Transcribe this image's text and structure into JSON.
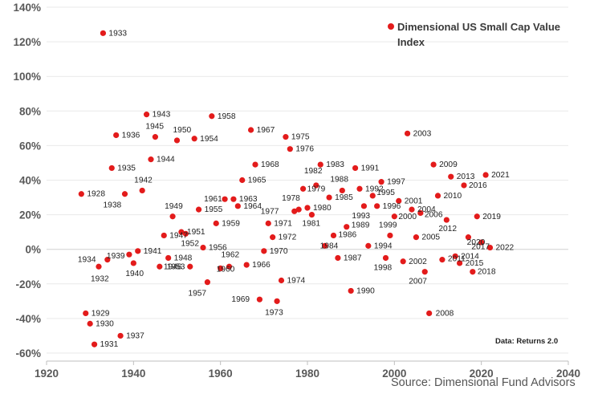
{
  "chart_data": {
    "type": "scatter",
    "title": "",
    "legend": {
      "label_line1": "Dimensional US Small Cap Value",
      "label_line2": "Index",
      "position": "top-right"
    },
    "xlabel": "",
    "ylabel": "",
    "xlim": [
      1920,
      2040
    ],
    "ylim": [
      -60,
      140
    ],
    "x_ticks": [
      "1920",
      "1940",
      "1960",
      "1980",
      "2000",
      "2020",
      "2040"
    ],
    "y_ticks": [
      "140%",
      "120%",
      "100%",
      "80%",
      "60%",
      "40%",
      "20%",
      "0%",
      "-20%",
      "-40%",
      "-60%"
    ],
    "grid": "horizontal",
    "marker_color": "#E31B1B",
    "series": [
      {
        "name": "Dimensional US Small Cap Value Index",
        "unit": "% annual return",
        "points": [
          {
            "year": "1928",
            "x": 1928,
            "y": 32
          },
          {
            "year": "1929",
            "x": 1929,
            "y": -37
          },
          {
            "year": "1930",
            "x": 1930,
            "y": -43
          },
          {
            "year": "1931",
            "x": 1931,
            "y": -55
          },
          {
            "year": "1932",
            "x": 1932,
            "y": -10
          },
          {
            "year": "1933",
            "x": 1933,
            "y": 125
          },
          {
            "year": "1934",
            "x": 1934,
            "y": -6
          },
          {
            "year": "1935",
            "x": 1935,
            "y": 47
          },
          {
            "year": "1936",
            "x": 1936,
            "y": 66
          },
          {
            "year": "1937",
            "x": 1937,
            "y": -50
          },
          {
            "year": "1938",
            "x": 1938,
            "y": 32
          },
          {
            "year": "1939",
            "x": 1939,
            "y": -3
          },
          {
            "year": "1940",
            "x": 1940,
            "y": -8
          },
          {
            "year": "1941",
            "x": 1941,
            "y": -1
          },
          {
            "year": "1942",
            "x": 1942,
            "y": 34
          },
          {
            "year": "1943",
            "x": 1943,
            "y": 78
          },
          {
            "year": "1944",
            "x": 1944,
            "y": 52
          },
          {
            "year": "1945",
            "x": 1945,
            "y": 65
          },
          {
            "year": "1946",
            "x": 1946,
            "y": -10
          },
          {
            "year": "1947",
            "x": 1947,
            "y": 8
          },
          {
            "year": "1948",
            "x": 1948,
            "y": -5
          },
          {
            "year": "1949",
            "x": 1949,
            "y": 19
          },
          {
            "year": "1950",
            "x": 1950,
            "y": 63
          },
          {
            "year": "1951",
            "x": 1951,
            "y": 10
          },
          {
            "year": "1952",
            "x": 1952,
            "y": 9
          },
          {
            "year": "1953",
            "x": 1953,
            "y": -10
          },
          {
            "year": "1954",
            "x": 1954,
            "y": 64
          },
          {
            "year": "1955",
            "x": 1955,
            "y": 23
          },
          {
            "year": "1956",
            "x": 1956,
            "y": 1
          },
          {
            "year": "1957",
            "x": 1957,
            "y": -19
          },
          {
            "year": "1958",
            "x": 1958,
            "y": 77
          },
          {
            "year": "1959",
            "x": 1959,
            "y": 15
          },
          {
            "year": "1960",
            "x": 1960,
            "y": -11
          },
          {
            "year": "1961",
            "x": 1961,
            "y": 29
          },
          {
            "year": "1962",
            "x": 1962,
            "y": -10
          },
          {
            "year": "1963",
            "x": 1963,
            "y": 29
          },
          {
            "year": "1964",
            "x": 1964,
            "y": 25
          },
          {
            "year": "1965",
            "x": 1965,
            "y": 40
          },
          {
            "year": "1966",
            "x": 1966,
            "y": -9
          },
          {
            "year": "1967",
            "x": 1967,
            "y": 69
          },
          {
            "year": "1968",
            "x": 1968,
            "y": 49
          },
          {
            "year": "1969",
            "x": 1969,
            "y": -29
          },
          {
            "year": "1970",
            "x": 1970,
            "y": -1
          },
          {
            "year": "1971",
            "x": 1971,
            "y": 15
          },
          {
            "year": "1972",
            "x": 1972,
            "y": 7
          },
          {
            "year": "1973",
            "x": 1973,
            "y": -30
          },
          {
            "year": "1974",
            "x": 1974,
            "y": -18
          },
          {
            "year": "1975",
            "x": 1975,
            "y": 65
          },
          {
            "year": "1976",
            "x": 1976,
            "y": 58
          },
          {
            "year": "1977",
            "x": 1977,
            "y": 22
          },
          {
            "year": "1978",
            "x": 1978,
            "y": 23
          },
          {
            "year": "1979",
            "x": 1979,
            "y": 35
          },
          {
            "year": "1980",
            "x": 1980,
            "y": 24
          },
          {
            "year": "1981",
            "x": 1981,
            "y": 20
          },
          {
            "year": "1982",
            "x": 1982,
            "y": 37
          },
          {
            "year": "1983",
            "x": 1983,
            "y": 49
          },
          {
            "year": "1984",
            "x": 1984,
            "y": 2
          },
          {
            "year": "1985",
            "x": 1985,
            "y": 30
          },
          {
            "year": "1986",
            "x": 1986,
            "y": 8
          },
          {
            "year": "1987",
            "x": 1987,
            "y": -5
          },
          {
            "year": "1988",
            "x": 1988,
            "y": 34
          },
          {
            "year": "1989",
            "x": 1989,
            "y": 13
          },
          {
            "year": "1990",
            "x": 1990,
            "y": -24
          },
          {
            "year": "1991",
            "x": 1991,
            "y": 47
          },
          {
            "year": "1992",
            "x": 1992,
            "y": 35
          },
          {
            "year": "1993",
            "x": 1993,
            "y": 25
          },
          {
            "year": "1994",
            "x": 1994,
            "y": 2
          },
          {
            "year": "1995",
            "x": 1995,
            "y": 31
          },
          {
            "year": "1996",
            "x": 1996,
            "y": 25
          },
          {
            "year": "1997",
            "x": 1997,
            "y": 39
          },
          {
            "year": "1998",
            "x": 1998,
            "y": -5
          },
          {
            "year": "1999",
            "x": 1999,
            "y": 8
          },
          {
            "year": "2000",
            "x": 2000,
            "y": 19
          },
          {
            "year": "2001",
            "x": 2001,
            "y": 28
          },
          {
            "year": "2002",
            "x": 2002,
            "y": -7
          },
          {
            "year": "2003",
            "x": 2003,
            "y": 67
          },
          {
            "year": "2004",
            "x": 2004,
            "y": 23
          },
          {
            "year": "2005",
            "x": 2005,
            "y": 7
          },
          {
            "year": "2006",
            "x": 2006,
            "y": 21
          },
          {
            "year": "2007",
            "x": 2007,
            "y": -13
          },
          {
            "year": "2008",
            "x": 2008,
            "y": -37
          },
          {
            "year": "2009",
            "x": 2009,
            "y": 49
          },
          {
            "year": "2010",
            "x": 2010,
            "y": 31
          },
          {
            "year": "2011",
            "x": 2011,
            "y": -6
          },
          {
            "year": "2012",
            "x": 2012,
            "y": 17
          },
          {
            "year": "2013",
            "x": 2013,
            "y": 42
          },
          {
            "year": "2014",
            "x": 2014,
            "y": -4
          },
          {
            "year": "2015",
            "x": 2015,
            "y": -8
          },
          {
            "year": "2016",
            "x": 2016,
            "y": 37
          },
          {
            "year": "2017",
            "x": 2017,
            "y": 7
          },
          {
            "year": "2018",
            "x": 2018,
            "y": -13
          },
          {
            "year": "2019",
            "x": 2019,
            "y": 19
          },
          {
            "year": "2020",
            "x": 2020,
            "y": 4
          },
          {
            "year": "2021",
            "x": 2021,
            "y": 43
          },
          {
            "year": "2022",
            "x": 2022,
            "y": 1
          }
        ]
      }
    ]
  },
  "notes": {
    "data_source": "Data: Returns 2.0",
    "source": "Source: Dimensional Fund Advisors"
  }
}
